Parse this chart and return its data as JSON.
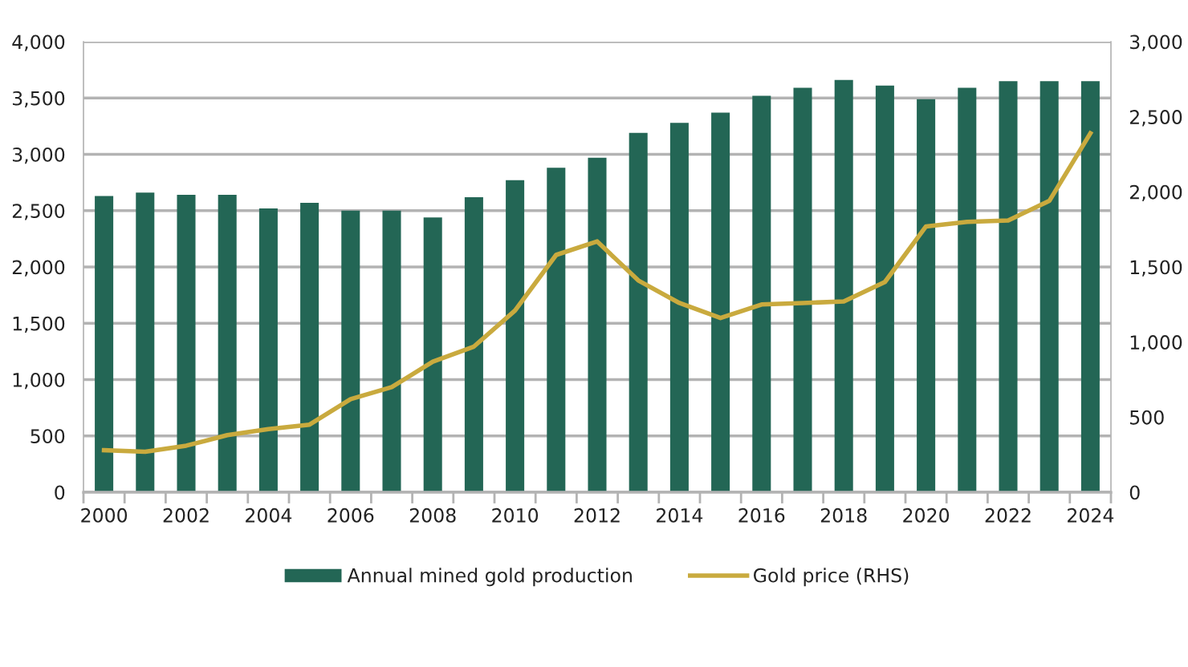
{
  "chart_data": {
    "type": "bar",
    "categories": [
      "2000",
      null,
      "2002",
      null,
      "2004",
      null,
      "2006",
      null,
      "2008",
      null,
      "2010",
      null,
      "2012",
      null,
      "2014",
      null,
      "2016",
      null,
      "2018",
      null,
      "2020",
      null,
      "2022",
      null,
      "2024"
    ],
    "series": [
      {
        "name": "Annual mined gold production",
        "color": "#236655",
        "values": [
          2630,
          2660,
          2640,
          2640,
          2520,
          2570,
          2500,
          2500,
          2440,
          2620,
          2770,
          2880,
          2970,
          3190,
          3280,
          3370,
          3520,
          3590,
          3660,
          3610,
          3490,
          3590,
          3650,
          3650,
          3650
        ]
      },
      {
        "name": "Gold price (RHS)",
        "type": "line",
        "axis": "y2",
        "color": "#c9aa3e",
        "line_style": "solid",
        "values": [
          280,
          270,
          310,
          380,
          420,
          450,
          620,
          700,
          870,
          970,
          1210,
          1580,
          1670,
          1410,
          1260,
          1160,
          1250,
          1260,
          1270,
          1400,
          1770,
          1800,
          1810,
          1940,
          2390
        ]
      }
    ],
    "ylim": [
      0,
      4000
    ],
    "yticks": [
      0,
      500,
      {
        "value": 1000,
        "label": "1,000"
      },
      {
        "value": 1500,
        "label": "1,500"
      },
      {
        "value": 2000,
        "label": "2,000"
      },
      {
        "value": 2500,
        "label": "2,500"
      },
      {
        "value": 3000,
        "label": "3,000"
      },
      {
        "value": 3500,
        "label": "3,500"
      },
      {
        "value": 4000,
        "label": "4,000"
      }
    ],
    "y2lim": [
      0,
      3000
    ],
    "y2ticks": [
      0,
      500,
      {
        "value": 1000,
        "label": "1,000"
      },
      {
        "value": 1500,
        "label": "1,500"
      },
      {
        "value": 2000,
        "label": "2,000"
      },
      {
        "value": 2500,
        "label": "2,500"
      },
      {
        "value": 3000,
        "label": "3,000"
      }
    ],
    "grid": "y",
    "legend": "bottom"
  }
}
